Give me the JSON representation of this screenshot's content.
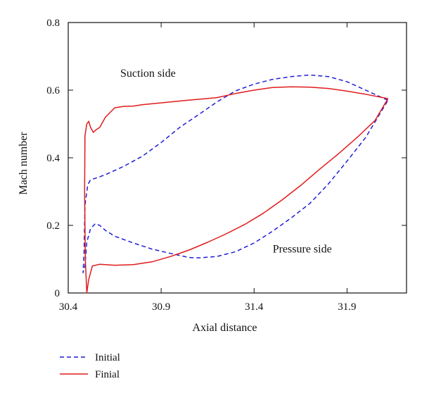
{
  "chart_data": {
    "type": "line",
    "title": "",
    "xlabel": "Axial distance",
    "ylabel": "Mach number",
    "xlim": [
      30.4,
      32.22
    ],
    "ylim": [
      0,
      0.8
    ],
    "x_ticks": [
      30.4,
      30.9,
      31.4,
      31.9
    ],
    "x_tick_labels": [
      "30.4",
      "30.9",
      "31.4",
      "31.9"
    ],
    "y_ticks": [
      0,
      0.2,
      0.4,
      0.6,
      0.8
    ],
    "y_tick_labels": [
      "0",
      "0.2",
      "0.4",
      "0.6",
      "0.8"
    ],
    "grid": false,
    "legend_position": "bottom-left",
    "annotations": [
      {
        "text": "Suction side",
        "x": 30.68,
        "y": 0.64
      },
      {
        "text": "Pressure side",
        "x": 31.5,
        "y": 0.12
      }
    ],
    "series": [
      {
        "name": "Initial",
        "color": "#1f1fd6",
        "style": "dashed",
        "points": [
          [
            32.12,
            0.57
          ],
          [
            32.0,
            0.6
          ],
          [
            31.9,
            0.625
          ],
          [
            31.8,
            0.64
          ],
          [
            31.7,
            0.645
          ],
          [
            31.6,
            0.64
          ],
          [
            31.5,
            0.632
          ],
          [
            31.4,
            0.618
          ],
          [
            31.3,
            0.598
          ],
          [
            31.2,
            0.565
          ],
          [
            31.1,
            0.527
          ],
          [
            31.0,
            0.49
          ],
          [
            30.9,
            0.445
          ],
          [
            30.8,
            0.405
          ],
          [
            30.7,
            0.375
          ],
          [
            30.6,
            0.35
          ],
          [
            30.55,
            0.34
          ],
          [
            30.52,
            0.335
          ],
          [
            30.505,
            0.32
          ],
          [
            30.49,
            0.26
          ],
          [
            30.485,
            0.12
          ],
          [
            30.48,
            0.06
          ],
          [
            30.49,
            0.08
          ],
          [
            30.5,
            0.15
          ],
          [
            30.52,
            0.19
          ],
          [
            30.545,
            0.205
          ],
          [
            30.57,
            0.2
          ],
          [
            30.6,
            0.185
          ],
          [
            30.65,
            0.168
          ],
          [
            30.75,
            0.148
          ],
          [
            30.85,
            0.13
          ],
          [
            30.95,
            0.117
          ],
          [
            31.05,
            0.105
          ],
          [
            31.1,
            0.104
          ],
          [
            31.2,
            0.108
          ],
          [
            31.3,
            0.122
          ],
          [
            31.4,
            0.148
          ],
          [
            31.5,
            0.183
          ],
          [
            31.6,
            0.222
          ],
          [
            31.7,
            0.265
          ],
          [
            31.8,
            0.323
          ],
          [
            31.9,
            0.39
          ],
          [
            32.0,
            0.46
          ],
          [
            32.12,
            0.57
          ]
        ]
      },
      {
        "name": "Finial",
        "color": "#e01b1b",
        "style": "solid",
        "points": [
          [
            32.12,
            0.575
          ],
          [
            32.0,
            0.588
          ],
          [
            31.9,
            0.597
          ],
          [
            31.8,
            0.605
          ],
          [
            31.7,
            0.609
          ],
          [
            31.6,
            0.61
          ],
          [
            31.5,
            0.608
          ],
          [
            31.4,
            0.6
          ],
          [
            31.3,
            0.59
          ],
          [
            31.2,
            0.578
          ],
          [
            31.0,
            0.568
          ],
          [
            30.8,
            0.557
          ],
          [
            30.75,
            0.553
          ],
          [
            30.7,
            0.552
          ],
          [
            30.65,
            0.548
          ],
          [
            30.6,
            0.52
          ],
          [
            30.57,
            0.49
          ],
          [
            30.55,
            0.483
          ],
          [
            30.535,
            0.475
          ],
          [
            30.52,
            0.49
          ],
          [
            30.51,
            0.508
          ],
          [
            30.5,
            0.5
          ],
          [
            30.49,
            0.465
          ],
          [
            30.488,
            0.3
          ],
          [
            30.492,
            0.1
          ],
          [
            30.5,
            0.0
          ],
          [
            30.51,
            0.04
          ],
          [
            30.53,
            0.08
          ],
          [
            30.57,
            0.085
          ],
          [
            30.65,
            0.082
          ],
          [
            30.75,
            0.084
          ],
          [
            30.85,
            0.092
          ],
          [
            30.95,
            0.108
          ],
          [
            31.05,
            0.127
          ],
          [
            31.15,
            0.15
          ],
          [
            31.25,
            0.175
          ],
          [
            31.35,
            0.203
          ],
          [
            31.45,
            0.236
          ],
          [
            31.55,
            0.275
          ],
          [
            31.65,
            0.318
          ],
          [
            31.75,
            0.365
          ],
          [
            31.85,
            0.41
          ],
          [
            31.95,
            0.458
          ],
          [
            32.05,
            0.51
          ],
          [
            32.12,
            0.575
          ]
        ]
      }
    ]
  }
}
